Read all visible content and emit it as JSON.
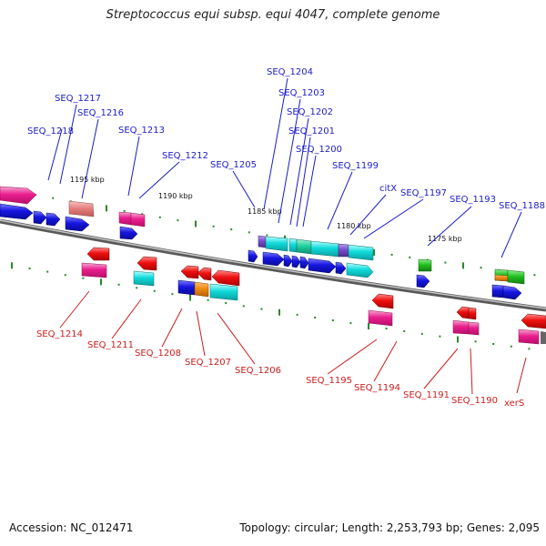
{
  "title": "Streptococcus equi subsp. equi 4047, complete genome",
  "footer": {
    "accession": "Accession: NC_012471",
    "summary": "Topology: circular; Length: 2,253,793 bp; Genes: 2,095"
  },
  "colors": {
    "backbone": "#808080",
    "tick": "#2a8a2a",
    "label_top": "#1c1ccc",
    "label_bottom": "#cc1c1c",
    "blue_gene": "#1616e0",
    "cyan_gene": "#10dada",
    "magenta_gene": "#ea1f8e",
    "red_gene": "#ee1010",
    "salmon_gene": "#e88080",
    "orange_gene": "#ee8a10",
    "green_gene": "#22c022",
    "purple_gene": "#7a4ecc"
  },
  "scale_labels": [
    "1195 kbp",
    "1190 kbp",
    "1185 kbp",
    "1180 kbp",
    "1175 kbp"
  ],
  "top_labels": [
    "SEQ_1217",
    "SEQ_1216",
    "SEQ_1218",
    "SEQ_1213",
    "SEQ_1212",
    "SEQ_1205",
    "SEQ_1204",
    "SEQ_1203",
    "SEQ_1202",
    "SEQ_1201",
    "SEQ_1200",
    "SEQ_1199",
    "citX",
    "SEQ_1197",
    "SEQ_1193",
    "SEQ_1188"
  ],
  "bottom_labels": [
    "SEQ_1214",
    "SEQ_1211",
    "SEQ_1208",
    "SEQ_1207",
    "SEQ_1206",
    "SEQ_1195",
    "SEQ_1194",
    "SEQ_1191",
    "SEQ_1190",
    "xerS"
  ]
}
